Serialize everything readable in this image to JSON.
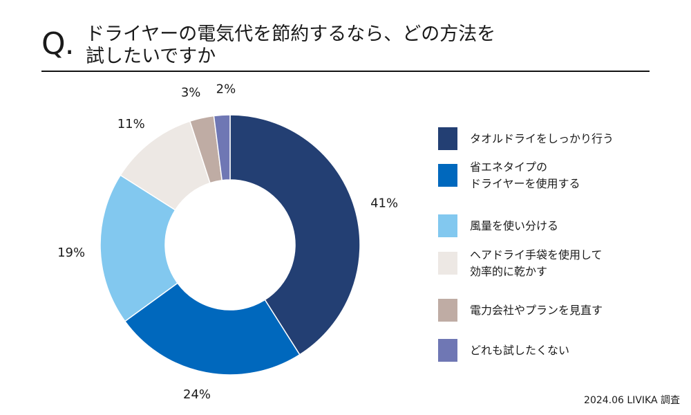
{
  "header": {
    "q_mark": "Q.",
    "title_line1": "ドライヤーの電気代を節約するなら、どの方法を",
    "title_line2": "試したいですか"
  },
  "source": "2024.06 LIVIKA 調査",
  "chart_data": {
    "type": "pie",
    "donut": true,
    "slices": [
      {
        "label": "タオルドライをしっかり行う",
        "value": 41,
        "value_label": "41%",
        "color": "#233f73"
      },
      {
        "label": "省エネタイプの\nドライヤーを使用する",
        "value": 24,
        "value_label": "24%",
        "color": "#0068bd"
      },
      {
        "label": "風量を使い分ける",
        "value": 19,
        "value_label": "19%",
        "color": "#82c8ef"
      },
      {
        "label": "ヘアドライ手袋を使用して\n効率的に乾かす",
        "value": 11,
        "value_label": "11%",
        "color": "#ede8e4"
      },
      {
        "label": "電力会社やプランを見直す",
        "value": 3,
        "value_label": "3%",
        "color": "#bfaca4"
      },
      {
        "label": "どれも試したくない",
        "value": 2,
        "value_label": "2%",
        "color": "#6f77b4"
      }
    ],
    "legend_position": "right",
    "start": "top",
    "direction": "clockwise"
  }
}
